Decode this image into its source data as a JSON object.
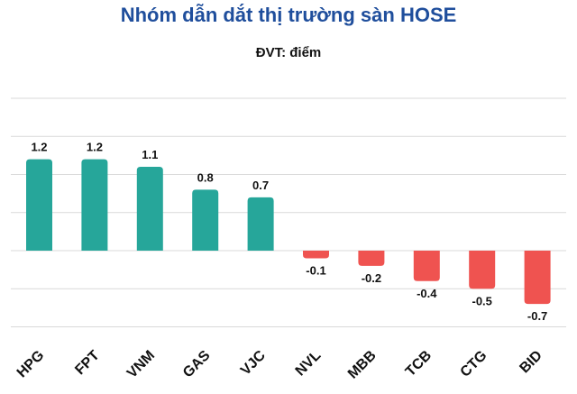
{
  "chart_data": {
    "type": "bar",
    "title": "Nhóm dẫn dắt thị trường sàn HOSE",
    "subtitle": "ĐVT: điểm",
    "categories": [
      "HPG",
      "FPT",
      "VNM",
      "GAS",
      "VJC",
      "NVL",
      "MBB",
      "TCB",
      "CTG",
      "BID"
    ],
    "values": [
      1.2,
      1.2,
      1.1,
      0.8,
      0.7,
      -0.1,
      -0.2,
      -0.4,
      -0.5,
      -0.7
    ],
    "value_labels": [
      "1.2",
      "1.2",
      "1.1",
      "0.8",
      "0.7",
      "-0.1",
      "-0.2",
      "-0.4",
      "-0.5",
      "-0.7"
    ],
    "ylim": [
      -1.0,
      2.0
    ],
    "grid": true,
    "legend": "none",
    "colors": {
      "positive": "#26a69a",
      "negative": "#ef5350",
      "grid": "#d9d9d9",
      "title": "#1f4e9c"
    }
  }
}
